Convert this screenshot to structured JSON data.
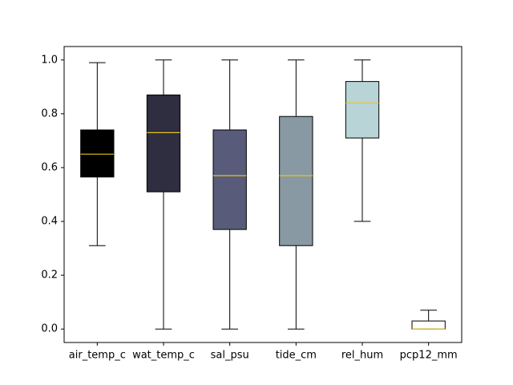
{
  "chart_data": {
    "type": "box",
    "categories": [
      "air_temp_c",
      "wat_temp_c",
      "sal_psu",
      "tide_cm",
      "rel_hum",
      "pcp12_mm"
    ],
    "boxes": [
      {
        "whisker_low": 0.31,
        "q1": 0.565,
        "median": 0.65,
        "q3": 0.74,
        "whisker_high": 0.99
      },
      {
        "whisker_low": 0.0,
        "q1": 0.51,
        "median": 0.73,
        "q3": 0.87,
        "whisker_high": 1.0
      },
      {
        "whisker_low": 0.0,
        "q1": 0.37,
        "median": 0.57,
        "q3": 0.74,
        "whisker_high": 1.0
      },
      {
        "whisker_low": 0.0,
        "q1": 0.31,
        "median": 0.57,
        "q3": 0.79,
        "whisker_high": 1.0
      },
      {
        "whisker_low": 0.4,
        "q1": 0.71,
        "median": 0.84,
        "q3": 0.92,
        "whisker_high": 1.0
      },
      {
        "whisker_low": 0.0,
        "q1": 0.0,
        "median": 0.0,
        "q3": 0.03,
        "whisker_high": 0.07
      }
    ],
    "colors": [
      "#000000",
      "#2e2e40",
      "#585c7a",
      "#8899a3",
      "#b8d4d6",
      "#ffffff"
    ],
    "median_color": "#e8c41a",
    "ylim": [
      -0.05,
      1.05
    ],
    "yticks": [
      {
        "value": 0,
        "label": "0.0"
      },
      {
        "value": 0.2,
        "label": "0.2"
      },
      {
        "value": 0.4,
        "label": "0.4"
      },
      {
        "value": 0.6,
        "label": "0.6"
      },
      {
        "value": 0.8,
        "label": "0.8"
      },
      {
        "value": 1.0,
        "label": "1.0"
      }
    ]
  }
}
